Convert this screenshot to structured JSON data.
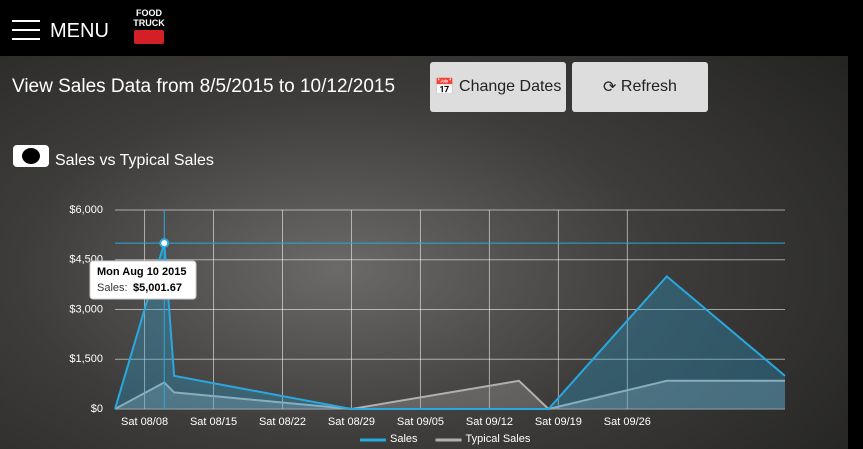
{
  "header": {
    "menu": "MENU",
    "logo": [
      "FOOD",
      "TRUCK"
    ]
  },
  "toolbar": {
    "title": "View Sales Data from 8/5/2015 to 10/12/2015",
    "buttons": [
      "Change Dates",
      "Refresh"
    ]
  },
  "section": {
    "title": "Sales vs Typical Sales"
  },
  "chart_data": {
    "type": "area",
    "x": [
      "08/05",
      "08/10",
      "08/11",
      "08/29",
      "09/15",
      "09/18",
      "09/30",
      "10/12"
    ],
    "xlim": [
      "08/05",
      "10/12"
    ],
    "xticks": [
      {
        "value": "08/08",
        "label": "Sat 08/08"
      },
      {
        "value": "08/15",
        "label": "Sat 08/15"
      },
      {
        "value": "08/22",
        "label": "Sat 08/22"
      },
      {
        "value": "08/29",
        "label": "Sat 08/29"
      },
      {
        "value": "09/05",
        "label": "Sat 09/05"
      },
      {
        "value": "09/12",
        "label": "Sat 09/12"
      },
      {
        "value": "09/19",
        "label": "Sat 09/19"
      },
      {
        "value": "09/26",
        "label": "Sat 09/26"
      }
    ],
    "ylim": [
      0,
      6000
    ],
    "yticks": [
      {
        "value": 0,
        "label": "$0"
      },
      {
        "value": 1500,
        "label": "$1,500"
      },
      {
        "value": 3000,
        "label": "$3,000"
      },
      {
        "value": 4500,
        "label": "$4,500"
      },
      {
        "value": 6000,
        "label": "$6,000"
      }
    ],
    "grid": true,
    "legend": "bottom",
    "series": [
      {
        "name": "Sales",
        "color": "#29a8e0",
        "values": [
          0,
          5001.67,
          1000,
          0,
          0,
          0,
          4000,
          1000
        ]
      },
      {
        "name": "Typical Sales",
        "color": "#b0b0b0",
        "values": [
          0,
          800,
          500,
          0,
          850,
          0,
          850,
          850
        ]
      }
    ],
    "tooltip": {
      "title": "Mon Aug 10 2015",
      "series_label": "Sales:",
      "value_label": "$5,001.67"
    }
  }
}
